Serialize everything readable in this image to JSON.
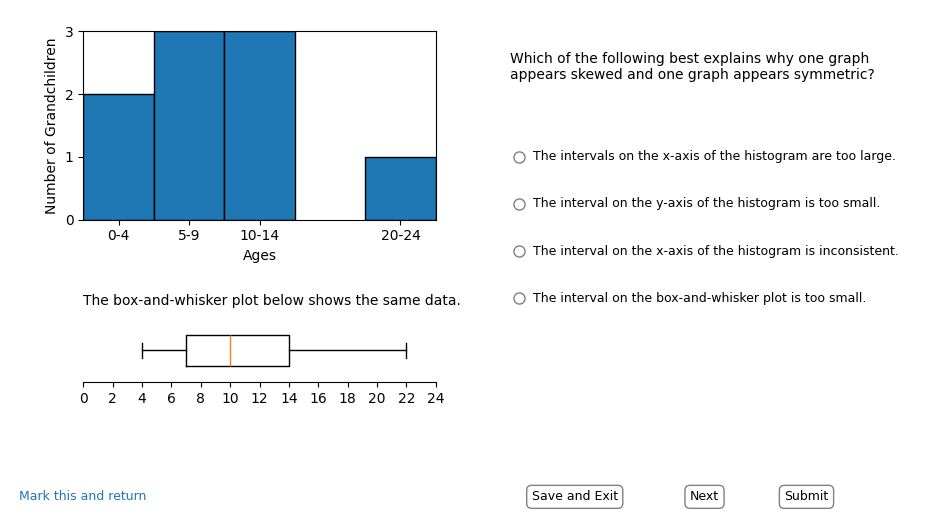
{
  "chart_data": [
    {
      "type": "bar",
      "categories": [
        "0-4",
        "5-9",
        "10-14",
        null,
        "20-24"
      ],
      "values": [
        2,
        3,
        3,
        null,
        1
      ],
      "xlabel": "Ages",
      "ylabel": "Number of Grandchildren",
      "ylim": [
        0,
        3
      ],
      "yticks": [
        0,
        1,
        2,
        3
      ],
      "grid": false
    },
    {
      "type": "box",
      "title": "The box-and-whisker plot below shows the same data.",
      "min": 4,
      "q1": 7,
      "median": 10,
      "q3": 14,
      "max": 22,
      "xlim": [
        0,
        24
      ],
      "xticks": [
        0,
        2,
        4,
        6,
        8,
        10,
        12,
        14,
        16,
        18,
        20,
        22,
        24
      ],
      "orientation": "horizontal",
      "tick_labels": "x",
      "grid": false
    }
  ],
  "question": "Which of the following best explains why one graph appears skewed and one graph appears symmetric?",
  "options": [
    "The intervals on the x-axis of the histogram are too large.",
    "The interval on the y-axis of the histogram is too small.",
    "The interval on the x-axis of the histogram is inconsistent.",
    "The interval on the box-and-whisker plot is too small."
  ],
  "mark_text": "Mark this and return",
  "buttons": [
    "Save and Exit",
    "Next",
    "Submit"
  ]
}
